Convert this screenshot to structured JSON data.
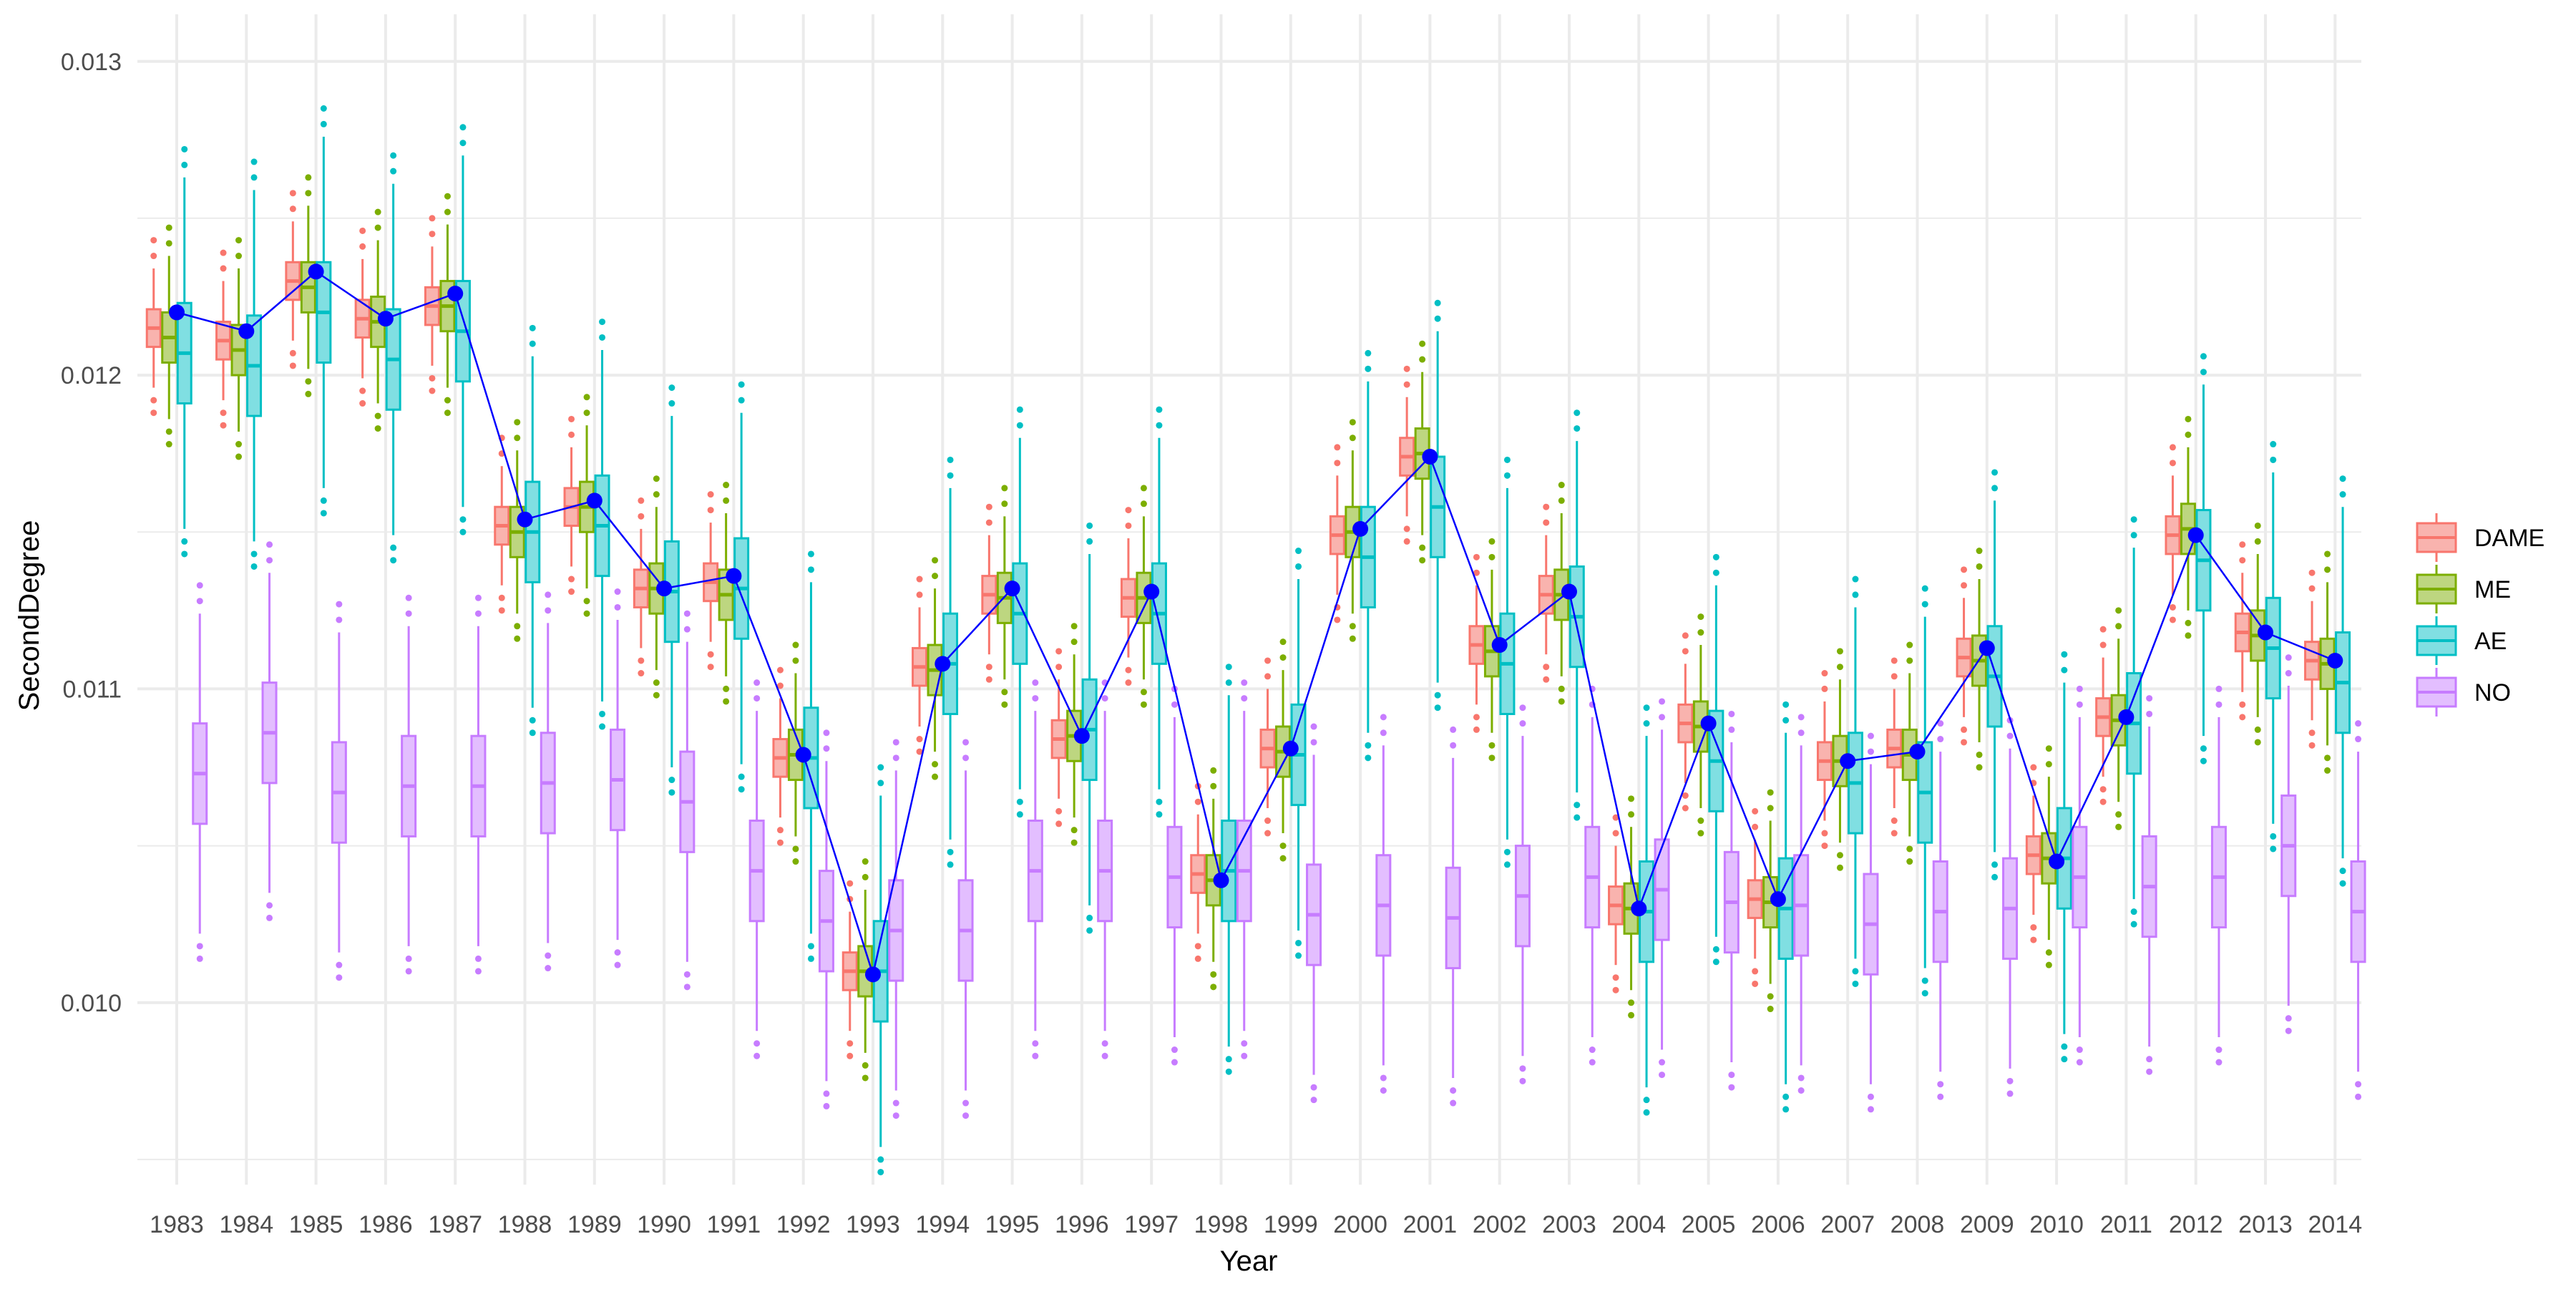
{
  "chart_data": {
    "type": "box",
    "xlabel": "Year",
    "ylabel": "SecondDegree",
    "ylim": [
      0.00942,
      0.01315
    ],
    "y_ticks": [
      0.01,
      0.011,
      0.012,
      0.013
    ],
    "y_tick_labels": [
      "0.010",
      "0.011",
      "0.012",
      "0.013"
    ],
    "grid": true,
    "legend_position": "right",
    "categories": [
      "1983",
      "1984",
      "1985",
      "1986",
      "1987",
      "1988",
      "1989",
      "1990",
      "1991",
      "1992",
      "1993",
      "1994",
      "1995",
      "1996",
      "1997",
      "1998",
      "1999",
      "2000",
      "2001",
      "2002",
      "2003",
      "2004",
      "2005",
      "2006",
      "2007",
      "2008",
      "2009",
      "2010",
      "2011",
      "2012",
      "2013",
      "2014"
    ],
    "series": [
      {
        "name": "DAME",
        "color": "#F8766D",
        "fill": "#F9B3AE",
        "medians": [
          0.01215,
          0.01211,
          0.0123,
          0.01218,
          0.01222,
          0.01152,
          0.01158,
          0.01132,
          0.01134,
          0.01078,
          0.0101,
          0.01107,
          0.0113,
          0.01084,
          0.01129,
          0.01041,
          0.01081,
          0.01149,
          0.01174,
          0.01114,
          0.0113,
          0.01031,
          0.01089,
          0.01033,
          0.01077,
          0.01081,
          0.0111,
          0.01047,
          0.01091,
          0.01149,
          0.01118,
          0.01109
        ],
        "iqr_half": 6e-05,
        "whisker": 0.00013
      },
      {
        "name": "ME",
        "color": "#7CAE00",
        "fill": "#BDD680",
        "medians": [
          0.01212,
          0.01208,
          0.01228,
          0.01217,
          0.01222,
          0.0115,
          0.01158,
          0.01132,
          0.0113,
          0.01079,
          0.0101,
          0.01106,
          0.01129,
          0.01085,
          0.01129,
          0.01039,
          0.0108,
          0.0115,
          0.01175,
          0.01112,
          0.0113,
          0.0103,
          0.01088,
          0.01032,
          0.01077,
          0.01079,
          0.01109,
          0.01046,
          0.0109,
          0.01151,
          0.01117,
          0.01108
        ],
        "iqr_half": 8e-05,
        "whisker": 0.00018
      },
      {
        "name": "AE",
        "color": "#00BFC4",
        "fill": "#80DFE2",
        "medians": [
          0.01207,
          0.01203,
          0.0122,
          0.01205,
          0.01214,
          0.0115,
          0.01152,
          0.01131,
          0.01132,
          0.01078,
          0.0101,
          0.01108,
          0.01124,
          0.01087,
          0.01124,
          0.01042,
          0.01079,
          0.01142,
          0.01158,
          0.01108,
          0.01123,
          0.01029,
          0.01077,
          0.0103,
          0.0107,
          0.01067,
          0.01104,
          0.01046,
          0.01089,
          0.01141,
          0.01113,
          0.01102
        ],
        "iqr_half": 0.00016,
        "whisker": 0.0004
      },
      {
        "name": "NO",
        "color": "#C77CFF",
        "fill": "#E3BEFF",
        "medians": [
          0.01073,
          0.01086,
          0.01067,
          0.01069,
          0.01069,
          0.0107,
          0.01071,
          0.01064,
          0.01042,
          0.01026,
          0.01023,
          0.01023,
          0.01042,
          0.01042,
          0.0104,
          0.01042,
          0.01028,
          0.01031,
          0.01027,
          0.01034,
          0.0104,
          0.01036,
          0.01032,
          0.01031,
          0.01025,
          0.01029,
          0.0103,
          0.0104,
          0.01037,
          0.0104,
          0.0105,
          0.01029
        ],
        "iqr_half": 0.00016,
        "whisker": 0.00035
      }
    ],
    "overlay_line": {
      "color": "#0000FF",
      "values": [
        0.0122,
        0.01214,
        0.01233,
        0.01218,
        0.01226,
        0.01154,
        0.0116,
        0.01132,
        0.01136,
        0.01079,
        0.01009,
        0.01108,
        0.01132,
        0.01085,
        0.01131,
        0.01039,
        0.01081,
        0.01151,
        0.01174,
        0.01114,
        0.01131,
        0.0103,
        0.01089,
        0.01033,
        0.01077,
        0.0108,
        0.01113,
        0.01045,
        0.01091,
        0.01149,
        0.01118,
        0.01109
      ]
    }
  }
}
